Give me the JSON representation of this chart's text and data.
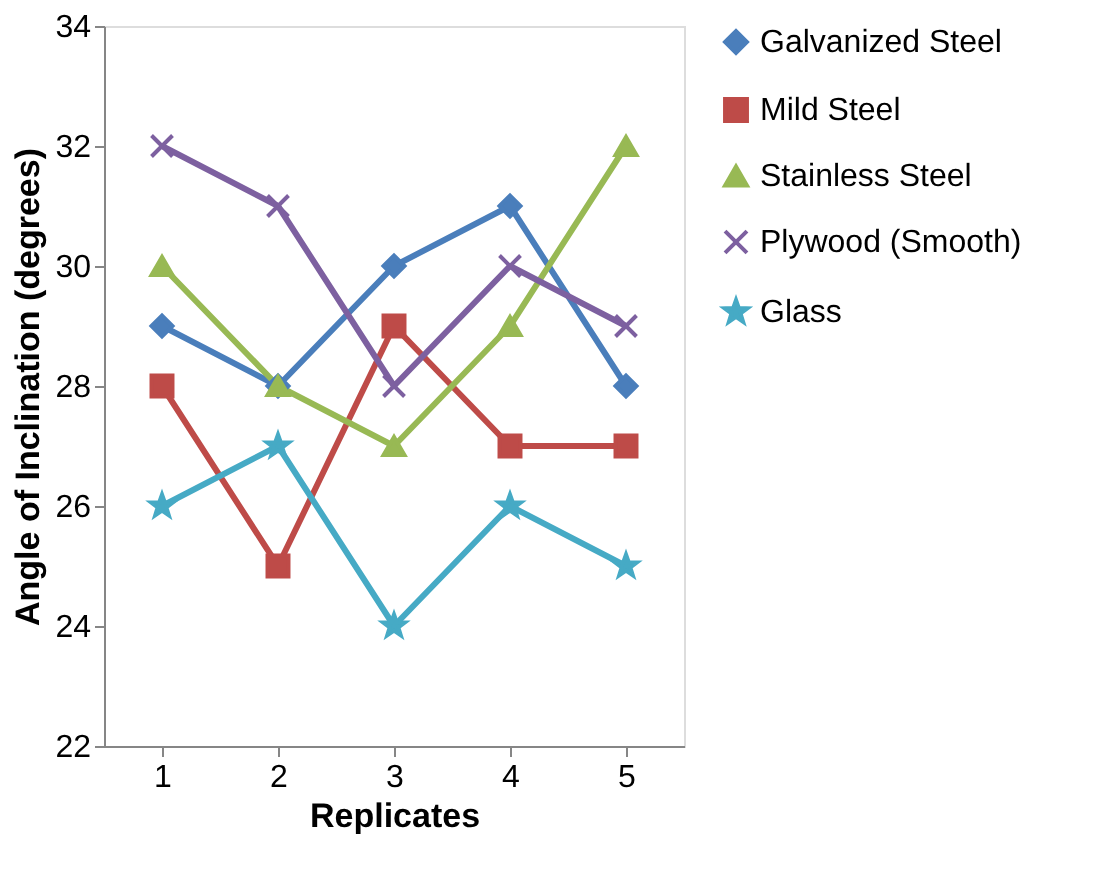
{
  "chart_data": {
    "type": "line",
    "xlabel": "Replicates",
    "ylabel": "Angle of Inclination (degrees)",
    "categories": [
      "1",
      "2",
      "3",
      "4",
      "5"
    ],
    "series": [
      {
        "name": "Galvanized Steel",
        "color": "#4a7ebb",
        "marker": "diamond",
        "values": [
          29,
          28,
          30,
          31,
          28
        ]
      },
      {
        "name": "Mild Steel",
        "color": "#be4b48",
        "marker": "square",
        "values": [
          28,
          25,
          29,
          27,
          27
        ]
      },
      {
        "name": "Stainless Steel",
        "color": "#98b954",
        "marker": "triangle",
        "values": [
          30,
          28,
          27,
          29,
          32
        ]
      },
      {
        "name": "Plywood (Smooth)",
        "color": "#7d60a0",
        "marker": "cross",
        "values": [
          32,
          31,
          28,
          30,
          29
        ]
      },
      {
        "name": "Glass",
        "color": "#46aac5",
        "marker": "star",
        "values": [
          26,
          27,
          24,
          26,
          25
        ]
      }
    ],
    "ylim": [
      22,
      34
    ],
    "yticks": [
      22,
      24,
      26,
      28,
      30,
      32,
      34
    ],
    "grid": false,
    "legend": "right",
    "line_style": "solid"
  }
}
